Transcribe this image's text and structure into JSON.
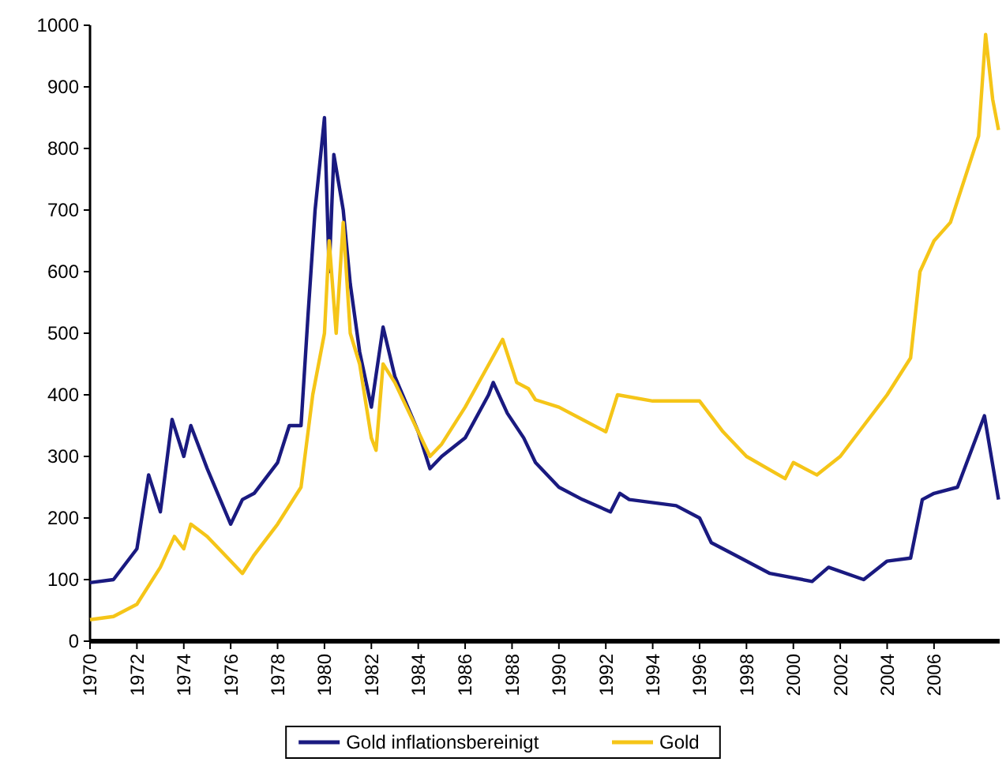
{
  "chart_data": {
    "type": "line",
    "x": [
      1970,
      1971,
      1972,
      1972.5,
      1973,
      1973.5,
      1974,
      1974.3,
      1975,
      1976,
      1976.5,
      1977,
      1978,
      1978.5,
      1979,
      1979.3,
      1979.6,
      1980,
      1980.2,
      1980.4,
      1980.8,
      1981.1,
      1981.5,
      1982,
      1982.5,
      1983,
      1984,
      1984.5,
      1985,
      1986,
      1987,
      1987.2,
      1987.8,
      1988.5,
      1989,
      1990,
      1991,
      1992.2,
      1992.6,
      1993,
      1995,
      1996,
      1996.5,
      1997.5,
      1999,
      2000.8,
      2001.5,
      2003,
      2004,
      2005,
      2005.5,
      2006,
      2007,
      2008.15,
      2008.75
    ],
    "series": [
      {
        "name": "Gold inflationsbereinigt",
        "color": "#1a1a80",
        "values": [
          95,
          100,
          150,
          270,
          210,
          360,
          300,
          350,
          280,
          190,
          230,
          240,
          290,
          350,
          350,
          530,
          700,
          850,
          600,
          790,
          700,
          580,
          470,
          380,
          510,
          430,
          340,
          280,
          300,
          330,
          400,
          420,
          370,
          330,
          290,
          250,
          230,
          210,
          240,
          230,
          220,
          200,
          160,
          140,
          110,
          97,
          120,
          100,
          130,
          135,
          230,
          240,
          250,
          366,
          230
        ]
      },
      {
        "name": "Gold",
        "color": "#f5c518",
        "x": [
          1970,
          1971,
          1972,
          1973,
          1973.6,
          1974,
          1974.3,
          1975,
          1976,
          1976.5,
          1977,
          1978,
          1979,
          1979.5,
          1980,
          1980.2,
          1980.5,
          1980.8,
          1981.1,
          1981.5,
          1982,
          1982.2,
          1982.5,
          1983,
          1984,
          1984.5,
          1985,
          1986,
          1987.6,
          1988.2,
          1988.7,
          1989,
          1990,
          1991,
          1992,
          1992.5,
          1994,
          1996,
          1997,
          1998,
          1999.65,
          2000,
          2001,
          2002,
          2003,
          2004,
          2005,
          2005.4,
          2006,
          2006.7,
          2007.9,
          2008.2,
          2008.5,
          2008.75
        ],
        "values": [
          35,
          40,
          60,
          120,
          170,
          150,
          190,
          170,
          130,
          110,
          140,
          190,
          250,
          400,
          500,
          650,
          500,
          680,
          500,
          450,
          330,
          310,
          450,
          420,
          340,
          300,
          320,
          380,
          490,
          420,
          410,
          392,
          380,
          360,
          340,
          400,
          390,
          390,
          340,
          300,
          264,
          290,
          270,
          300,
          350,
          400,
          460,
          600,
          650,
          680,
          820,
          985,
          880,
          830
        ]
      }
    ],
    "xlim": [
      1970,
      2008.8
    ],
    "xticks": [
      1970,
      1972,
      1974,
      1976,
      1978,
      1980,
      1982,
      1984,
      1986,
      1988,
      1990,
      1992,
      1994,
      1996,
      1998,
      2000,
      2002,
      2004,
      2006
    ],
    "ylim": [
      0,
      1000
    ],
    "yticks": [
      0,
      100,
      200,
      300,
      400,
      500,
      600,
      700,
      800,
      900,
      1000
    ],
    "grid": false,
    "legend": "bottom",
    "marker": "none",
    "line_style": "solid"
  }
}
